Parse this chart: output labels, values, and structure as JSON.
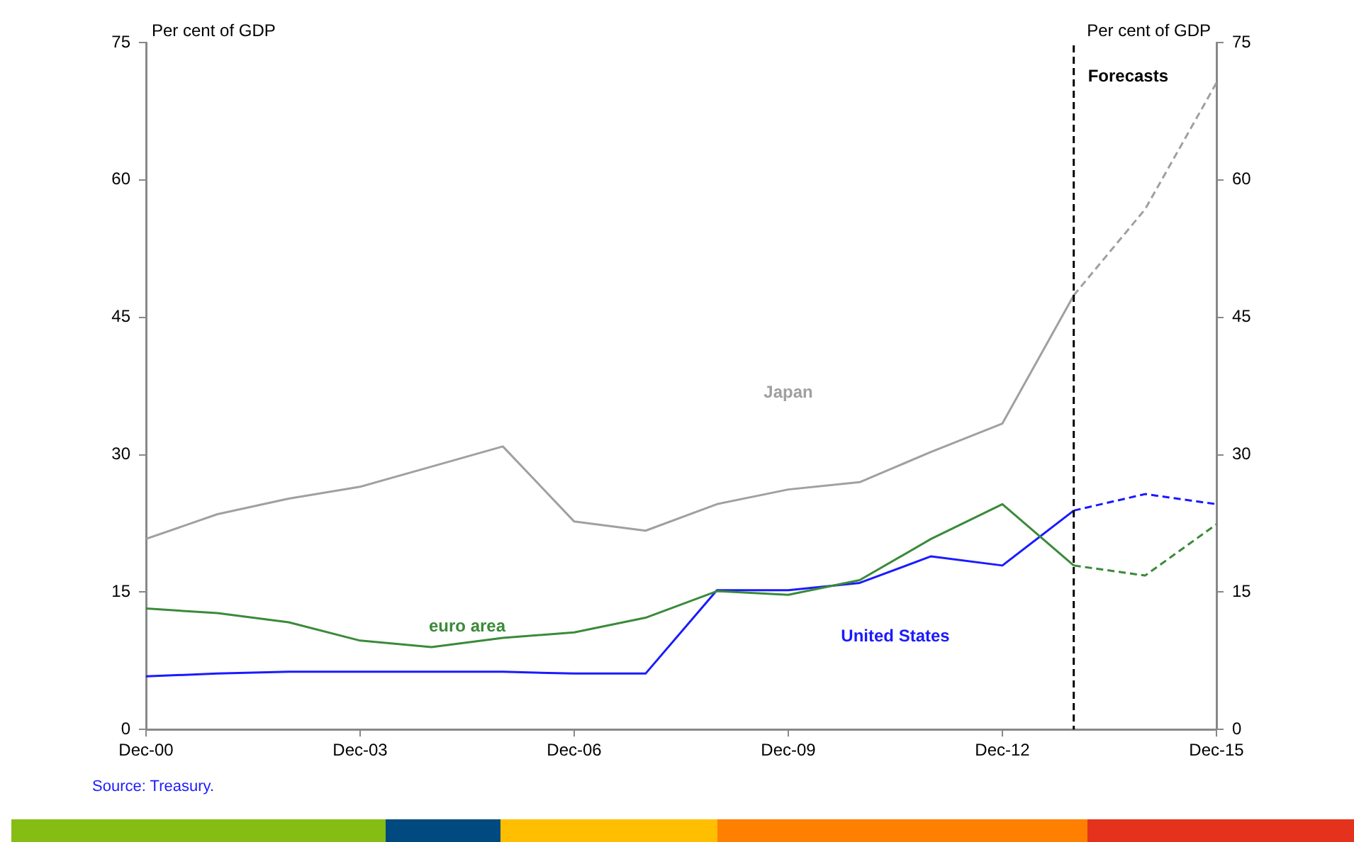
{
  "chart_data": {
    "type": "line",
    "ylabel": "Per cent of GDP",
    "y2label": "Per cent of GDP",
    "x": [
      "2000-12",
      "2001-12",
      "2002-12",
      "2003-12",
      "2004-12",
      "2005-12",
      "2006-12",
      "2007-12",
      "2008-12",
      "2009-12",
      "2010-12",
      "2011-12",
      "2012-12",
      "2013-12",
      "2014-12",
      "2015-12"
    ],
    "xlim": [
      "2000-12",
      "2015-12"
    ],
    "xticks": [
      {
        "value": "2000-12",
        "label": "Dec-00"
      },
      {
        "value": "2003-12",
        "label": "Dec-03"
      },
      {
        "value": "2006-12",
        "label": "Dec-06"
      },
      {
        "value": "2009-12",
        "label": "Dec-09"
      },
      {
        "value": "2012-12",
        "label": "Dec-12"
      },
      {
        "value": "2015-12",
        "label": "Dec-15"
      }
    ],
    "ylim": [
      0,
      75
    ],
    "yticks": [
      0,
      15,
      30,
      45,
      60,
      75
    ],
    "y2lim": [
      0,
      75
    ],
    "y2ticks": [
      0,
      15,
      30,
      45,
      60,
      75
    ],
    "series": [
      {
        "name": "Japan",
        "color": "#a0a0a0",
        "line_style": "solid",
        "values": [
          20.8,
          23.5,
          25.2,
          26.5,
          28.7,
          30.9,
          22.7,
          21.7,
          24.6,
          26.2,
          27.0,
          30.3,
          33.4,
          47.4,
          null,
          null
        ]
      },
      {
        "name": "euro area",
        "color": "#3a8a3a",
        "line_style": "solid",
        "values": [
          13.2,
          12.7,
          11.7,
          9.7,
          9.0,
          10.0,
          10.6,
          12.2,
          15.1,
          14.7,
          16.3,
          20.8,
          24.6,
          17.9,
          null,
          null
        ]
      },
      {
        "name": "United States",
        "color": "#1a1aff",
        "line_style": "solid",
        "values": [
          5.8,
          6.1,
          6.3,
          6.3,
          6.3,
          6.3,
          6.1,
          6.1,
          15.2,
          15.2,
          16.0,
          18.9,
          17.9,
          23.9,
          null,
          null
        ]
      },
      {
        "color": "#a0a0a0",
        "line_style": "dashed",
        "values": [
          null,
          null,
          null,
          null,
          null,
          null,
          null,
          null,
          null,
          null,
          null,
          null,
          null,
          47.4,
          56.8,
          70.6
        ]
      },
      {
        "color": "#3a8a3a",
        "line_style": "dashed",
        "values": [
          null,
          null,
          null,
          null,
          null,
          null,
          null,
          null,
          null,
          null,
          null,
          null,
          null,
          17.9,
          16.8,
          22.4
        ]
      },
      {
        "color": "#1a1aff",
        "line_style": "dashed",
        "values": [
          null,
          null,
          null,
          null,
          null,
          null,
          null,
          null,
          null,
          null,
          null,
          null,
          null,
          23.9,
          25.7,
          24.6
        ]
      }
    ],
    "ref_lines": [
      {
        "axis": "x",
        "value": "2013-12",
        "label": "Forecasts",
        "color": "#000000",
        "line_style": "dashed"
      }
    ],
    "annotations": [
      "Source: Treasury."
    ],
    "grid": false,
    "legend": false,
    "marker": "none"
  }
}
